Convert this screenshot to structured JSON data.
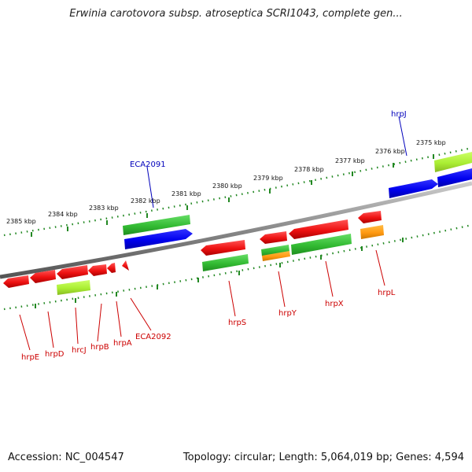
{
  "title": "Erwinia carotovora subsp. atroseptica SCRI1043, complete gen...",
  "footer": {
    "accession": "Accession: NC_004547",
    "summary": "Topology: circular; Length: 5,064,019 bp; Genes: 4,594"
  },
  "scale_labels": [
    "2385 kbp",
    "2384 kbp",
    "2383 kbp",
    "2382 kbp",
    "2381 kbp",
    "2380 kbp",
    "2379 kbp",
    "2378 kbp",
    "2377 kbp",
    "2376 kbp",
    "2375 kbp"
  ],
  "gene_labels": {
    "top": [
      "ECA2091",
      "hrpJ"
    ],
    "bottom": [
      "hrpE",
      "hrpD",
      "hrcJ",
      "hrpB",
      "hrpA",
      "ECA2092",
      "hrpS",
      "hrpY",
      "hrpX",
      "hrpL"
    ]
  },
  "colors": {
    "red": "#ee1111",
    "green": "#33bb33",
    "blue": "#0000ee",
    "lime": "#aaee33",
    "orange": "#ff9911",
    "backbone": "#888888",
    "tick": "#228822",
    "label_red": "#cc0000",
    "label_blue": "#0000bb"
  }
}
